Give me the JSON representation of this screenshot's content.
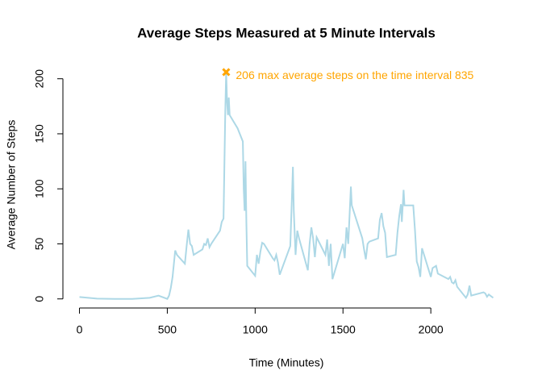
{
  "chart_data": {
    "type": "line",
    "title": "Average Steps Measured at 5 Minute Intervals",
    "x_label": "Time (Minutes)",
    "y_label": "Average Number of Steps",
    "color": "#add8e6",
    "x": [
      0,
      100,
      200,
      300,
      400,
      450,
      500,
      510,
      520,
      530,
      545,
      555,
      600,
      610,
      620,
      630,
      640,
      650,
      700,
      710,
      720,
      730,
      740,
      750,
      800,
      810,
      820,
      830,
      835,
      840,
      845,
      850,
      855,
      900,
      930,
      935,
      940,
      945,
      950,
      955,
      1000,
      1010,
      1020,
      1030,
      1040,
      1050,
      1100,
      1110,
      1120,
      1130,
      1140,
      1200,
      1210,
      1215,
      1220,
      1230,
      1240,
      1250,
      1300,
      1310,
      1320,
      1330,
      1340,
      1350,
      1400,
      1410,
      1420,
      1430,
      1440,
      1500,
      1510,
      1520,
      1530,
      1545,
      1550,
      1600,
      1610,
      1620,
      1630,
      1640,
      1650,
      1700,
      1710,
      1720,
      1730,
      1740,
      1750,
      1800,
      1810,
      1820,
      1830,
      1835,
      1845,
      1850,
      1900,
      1910,
      1920,
      1930,
      1940,
      1950,
      2000,
      2010,
      2030,
      2040,
      2100,
      2110,
      2120,
      2130,
      2140,
      2150,
      2200,
      2210,
      2220,
      2230,
      2300,
      2310,
      2320,
      2330,
      2355
    ],
    "values": [
      1.7,
      0.3,
      0,
      0,
      1,
      3,
      0,
      3,
      10,
      20,
      44,
      40,
      32,
      48,
      63,
      50,
      48,
      40,
      45,
      50,
      49,
      55,
      47,
      50,
      62,
      70,
      73,
      170,
      206,
      180,
      167,
      183,
      167,
      155,
      143,
      100,
      80,
      125,
      70,
      30,
      21,
      40,
      32,
      43,
      51,
      50,
      37,
      35,
      40,
      33,
      22,
      48,
      95,
      120,
      80,
      40,
      62,
      55,
      26,
      50,
      65,
      55,
      38,
      56,
      40,
      54,
      30,
      50,
      18,
      50,
      37,
      65,
      50,
      102,
      85,
      60,
      55,
      45,
      36,
      50,
      52,
      55,
      72,
      78,
      66,
      60,
      38,
      40,
      60,
      75,
      86,
      70,
      99,
      85,
      85,
      62,
      34,
      29,
      20,
      46,
      20,
      28,
      30,
      23,
      18,
      20,
      15,
      14,
      17,
      11,
      1,
      4,
      12,
      3,
      6,
      5,
      2,
      4,
      1
    ],
    "xlim": [
      -94.2,
      2449.2
    ],
    "ylim": [
      -8.25,
      214.42
    ],
    "xticks": [
      0,
      500,
      1000,
      1500,
      2000
    ],
    "yticks": [
      0,
      50,
      100,
      150,
      200
    ],
    "max_point": {
      "x": 835,
      "y": 206,
      "color": "#ffa500",
      "label": "206 max average steps on the time interval  835"
    }
  }
}
